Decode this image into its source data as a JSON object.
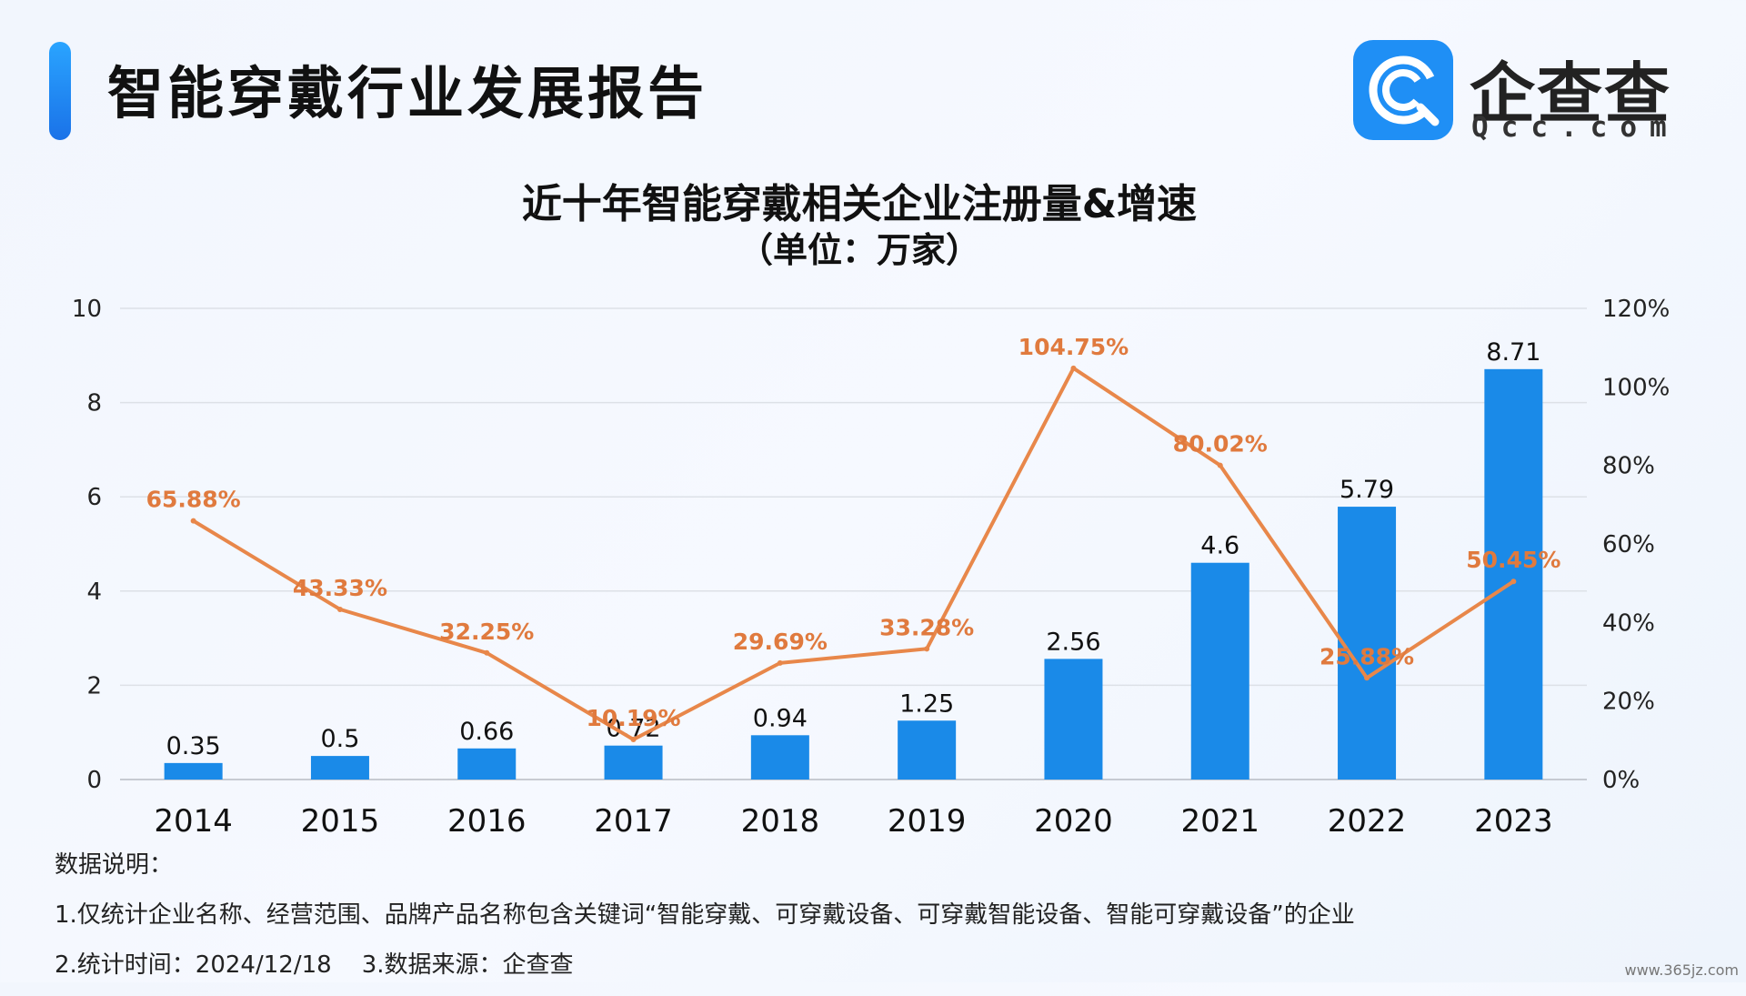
{
  "header": {
    "title": "智能穿戴行业发展报告",
    "logo_cn": "企查查",
    "logo_en": "Qcc.com"
  },
  "colors": {
    "bar": "#1a8ae8",
    "line": "#e8874a",
    "line_label": "#e07a3e",
    "accent": "#1a8ae8"
  },
  "chart_data": {
    "type": "bar",
    "title": "近十年智能穿戴相关企业注册量&增速",
    "subtitle": "（单位：万家）",
    "categories": [
      "2014",
      "2015",
      "2016",
      "2017",
      "2018",
      "2019",
      "2020",
      "2021",
      "2022",
      "2023"
    ],
    "series": [
      {
        "type": "bar",
        "axis": "left",
        "values": [
          0.35,
          0.5,
          0.66,
          0.72,
          0.94,
          1.25,
          2.56,
          4.6,
          5.79,
          8.71
        ],
        "labels": [
          "0.35",
          "0.5",
          "0.66",
          "0.72",
          "0.94",
          "1.25",
          "2.56",
          "4.6",
          "5.79",
          "8.71"
        ]
      },
      {
        "type": "line",
        "axis": "right",
        "values": [
          65.88,
          43.33,
          32.25,
          10.19,
          29.69,
          33.28,
          104.75,
          80.02,
          25.88,
          50.45
        ],
        "labels": [
          "65.88%",
          "43.33%",
          "32.25%",
          "10.19%",
          "29.69%",
          "33.28%",
          "104.75%",
          "80.02%",
          "25.88%",
          "50.45%"
        ]
      }
    ],
    "y_left": {
      "min": 0,
      "max": 10,
      "ticks": [
        "0",
        "2",
        "4",
        "6",
        "8",
        "10"
      ]
    },
    "y_right": {
      "min": 0,
      "max": 120,
      "ticks": [
        "0%",
        "20%",
        "40%",
        "60%",
        "80%",
        "100%",
        "120%"
      ]
    },
    "grid": true,
    "legend": "none"
  },
  "notes": {
    "heading": "数据说明：",
    "line1": "1.仅统计企业名称、经营范围、品牌产品名称包含关键词“智能穿戴、可穿戴设备、可穿戴智能设备、智能可穿戴设备”的企业",
    "line2": "2.统计时间：2024/12/18    3.数据来源：企查查"
  },
  "watermark": "www.365jz.com"
}
